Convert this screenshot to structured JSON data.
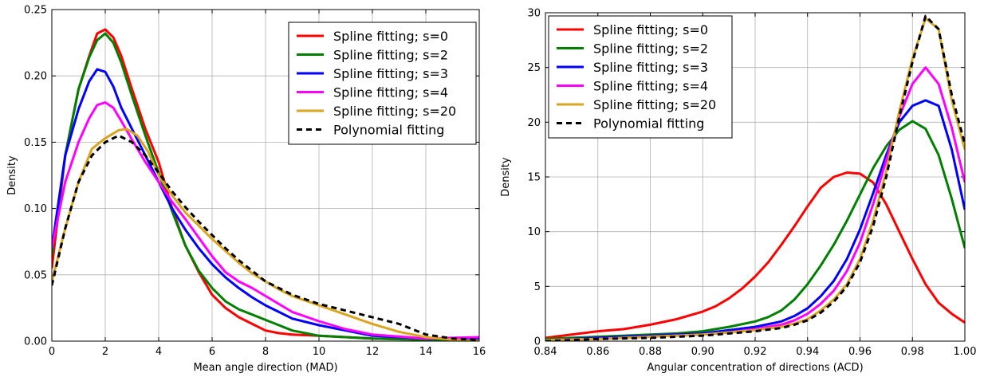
{
  "chart_data": [
    {
      "type": "line",
      "xlabel": "Mean angle direction (MAD)",
      "ylabel": "Density",
      "xlim": [
        0,
        16
      ],
      "ylim": [
        0,
        0.25
      ],
      "xticks": [
        "0",
        "2",
        "4",
        "6",
        "8",
        "10",
        "12",
        "14",
        "16"
      ],
      "yticks": [
        "0.00",
        "0.05",
        "0.10",
        "0.15",
        "0.20",
        "0.25"
      ],
      "grid": true,
      "legend_position": "top-right",
      "series": [
        {
          "name": "Spline fitting; s=0",
          "color": "#ff0000",
          "dash": "solid",
          "x": [
            0,
            0.5,
            1,
            1.4,
            1.7,
            2,
            2.3,
            2.6,
            3,
            3.5,
            4,
            4.5,
            5,
            5.5,
            6,
            6.5,
            7,
            7.5,
            8,
            8.5,
            9,
            10,
            11,
            12,
            14,
            16
          ],
          "y": [
            0.055,
            0.14,
            0.19,
            0.215,
            0.232,
            0.235,
            0.229,
            0.215,
            0.19,
            0.16,
            0.135,
            0.1,
            0.072,
            0.052,
            0.035,
            0.025,
            0.018,
            0.013,
            0.008,
            0.006,
            0.005,
            0.004,
            0.003,
            0.002,
            0.001,
            0.0
          ]
        },
        {
          "name": "Spline fitting; s=2",
          "color": "#008000",
          "dash": "solid",
          "x": [
            0,
            0.5,
            1,
            1.4,
            1.7,
            2,
            2.3,
            2.6,
            3,
            3.5,
            4,
            4.5,
            5,
            5.5,
            6,
            6.5,
            7,
            7.5,
            8,
            8.5,
            9,
            10,
            11,
            12,
            14,
            16
          ],
          "y": [
            0.065,
            0.14,
            0.19,
            0.214,
            0.227,
            0.232,
            0.225,
            0.21,
            0.185,
            0.155,
            0.127,
            0.098,
            0.072,
            0.053,
            0.04,
            0.03,
            0.024,
            0.02,
            0.016,
            0.012,
            0.008,
            0.004,
            0.003,
            0.002,
            0.001,
            0.0
          ]
        },
        {
          "name": "Spline fitting; s=3",
          "color": "#0000ff",
          "dash": "solid",
          "x": [
            0,
            0.5,
            1,
            1.4,
            1.7,
            2,
            2.3,
            2.6,
            3,
            3.5,
            4,
            4.5,
            5,
            5.5,
            6,
            6.5,
            7,
            7.5,
            8,
            8.5,
            9,
            10,
            11,
            12,
            14,
            16
          ],
          "y": [
            0.07,
            0.14,
            0.175,
            0.196,
            0.205,
            0.203,
            0.192,
            0.176,
            0.16,
            0.14,
            0.12,
            0.1,
            0.084,
            0.07,
            0.058,
            0.048,
            0.04,
            0.033,
            0.027,
            0.022,
            0.017,
            0.012,
            0.008,
            0.004,
            0.002,
            0.002
          ]
        },
        {
          "name": "Spline fitting; s=4",
          "color": "#ff00ff",
          "dash": "solid",
          "x": [
            0,
            0.5,
            1,
            1.4,
            1.7,
            2,
            2.3,
            2.6,
            3,
            3.5,
            4,
            4.5,
            5,
            5.5,
            6,
            6.5,
            7,
            7.5,
            8,
            8.5,
            9,
            10,
            11,
            12,
            14,
            16
          ],
          "y": [
            0.07,
            0.12,
            0.15,
            0.168,
            0.178,
            0.18,
            0.176,
            0.166,
            0.152,
            0.135,
            0.12,
            0.105,
            0.092,
            0.078,
            0.064,
            0.052,
            0.045,
            0.04,
            0.034,
            0.028,
            0.022,
            0.015,
            0.009,
            0.005,
            0.002,
            0.003
          ]
        },
        {
          "name": "Spline fitting; s=20",
          "color": "#daa520",
          "dash": "solid",
          "x": [
            0,
            0.5,
            1,
            1.5,
            2,
            2.5,
            2.8,
            3.2,
            3.6,
            4,
            4.5,
            5,
            5.5,
            6,
            6.5,
            7,
            7.5,
            8,
            8.5,
            9,
            10,
            11,
            12,
            13,
            14,
            15,
            16
          ],
          "y": [
            0.045,
            0.085,
            0.12,
            0.145,
            0.153,
            0.159,
            0.16,
            0.155,
            0.143,
            0.125,
            0.11,
            0.097,
            0.087,
            0.077,
            0.068,
            0.059,
            0.051,
            0.045,
            0.039,
            0.034,
            0.027,
            0.02,
            0.013,
            0.007,
            0.003,
            0.001,
            0.0
          ]
        },
        {
          "name": "Polynomial fitting",
          "color": "#000000",
          "dash": "dashed",
          "x": [
            0,
            0.5,
            1,
            1.5,
            2,
            2.5,
            3,
            3.5,
            4,
            4.5,
            5,
            5.5,
            6,
            6.5,
            7,
            7.5,
            8,
            8.5,
            9,
            10,
            11,
            12,
            13,
            14,
            15,
            16
          ],
          "y": [
            0.042,
            0.085,
            0.12,
            0.14,
            0.15,
            0.155,
            0.15,
            0.14,
            0.127,
            0.113,
            0.101,
            0.09,
            0.08,
            0.07,
            0.061,
            0.053,
            0.045,
            0.04,
            0.035,
            0.028,
            0.023,
            0.018,
            0.013,
            0.005,
            0.002,
            0.001
          ]
        }
      ]
    },
    {
      "type": "line",
      "xlabel": "Angular concentration of directions (ACD)",
      "ylabel": "Density",
      "xlim": [
        0.84,
        1.0
      ],
      "ylim": [
        0,
        30
      ],
      "xticks": [
        "0.84",
        "0.86",
        "0.88",
        "0.90",
        "0.92",
        "0.94",
        "0.96",
        "0.98",
        "1.00"
      ],
      "yticks": [
        "0",
        "5",
        "10",
        "15",
        "20",
        "25",
        "30"
      ],
      "grid": true,
      "legend_position": "top-left",
      "series": [
        {
          "name": "Spline fitting; s=0",
          "color": "#ff0000",
          "dash": "solid",
          "x": [
            0.84,
            0.85,
            0.86,
            0.87,
            0.88,
            0.89,
            0.9,
            0.905,
            0.91,
            0.915,
            0.92,
            0.925,
            0.93,
            0.935,
            0.94,
            0.945,
            0.95,
            0.955,
            0.96,
            0.965,
            0.97,
            0.975,
            0.98,
            0.985,
            0.99,
            0.995,
            1.0
          ],
          "y": [
            0.3,
            0.6,
            0.9,
            1.1,
            1.5,
            2.0,
            2.7,
            3.2,
            3.9,
            4.8,
            5.9,
            7.2,
            8.8,
            10.5,
            12.3,
            14.0,
            15.0,
            15.4,
            15.3,
            14.5,
            12.5,
            10.0,
            7.5,
            5.2,
            3.5,
            2.5,
            1.7
          ]
        },
        {
          "name": "Spline fitting; s=2",
          "color": "#008000",
          "dash": "solid",
          "x": [
            0.84,
            0.86,
            0.88,
            0.89,
            0.9,
            0.91,
            0.92,
            0.925,
            0.93,
            0.935,
            0.94,
            0.945,
            0.95,
            0.955,
            0.96,
            0.965,
            0.97,
            0.975,
            0.98,
            0.985,
            0.99,
            0.995,
            1.0
          ],
          "y": [
            0.2,
            0.4,
            0.6,
            0.7,
            0.9,
            1.3,
            1.8,
            2.2,
            2.8,
            3.8,
            5.2,
            6.9,
            8.8,
            11.0,
            13.4,
            15.8,
            17.8,
            19.3,
            20.1,
            19.4,
            17.0,
            13.0,
            8.5
          ]
        },
        {
          "name": "Spline fitting; s=3",
          "color": "#0000ff",
          "dash": "solid",
          "x": [
            0.84,
            0.86,
            0.88,
            0.9,
            0.91,
            0.92,
            0.93,
            0.935,
            0.94,
            0.945,
            0.95,
            0.955,
            0.96,
            0.965,
            0.97,
            0.975,
            0.98,
            0.985,
            0.99,
            0.995,
            1.0
          ],
          "y": [
            0.1,
            0.3,
            0.5,
            0.7,
            1.0,
            1.3,
            1.8,
            2.3,
            3.0,
            4.1,
            5.5,
            7.5,
            10.2,
            13.5,
            17.0,
            20.0,
            21.5,
            22.0,
            21.5,
            17.5,
            12.0
          ]
        },
        {
          "name": "Spline fitting; s=4",
          "color": "#ff00ff",
          "dash": "solid",
          "x": [
            0.84,
            0.86,
            0.88,
            0.9,
            0.91,
            0.92,
            0.93,
            0.935,
            0.94,
            0.945,
            0.95,
            0.955,
            0.96,
            0.965,
            0.97,
            0.975,
            0.98,
            0.985,
            0.99,
            0.995,
            1.0
          ],
          "y": [
            0.1,
            0.2,
            0.4,
            0.6,
            0.8,
            1.1,
            1.5,
            1.9,
            2.5,
            3.4,
            4.6,
            6.4,
            9.0,
            12.5,
            16.5,
            20.5,
            23.5,
            25.0,
            23.5,
            19.5,
            14.5
          ]
        },
        {
          "name": "Spline fitting; s=20",
          "color": "#daa520",
          "dash": "solid",
          "x": [
            0.84,
            0.86,
            0.88,
            0.9,
            0.91,
            0.92,
            0.93,
            0.935,
            0.94,
            0.945,
            0.95,
            0.955,
            0.96,
            0.965,
            0.97,
            0.975,
            0.98,
            0.985,
            0.99,
            0.995,
            1.0
          ],
          "y": [
            0.1,
            0.2,
            0.4,
            0.6,
            0.8,
            1.0,
            1.3,
            1.6,
            2.0,
            2.8,
            3.8,
            5.2,
            7.5,
            11.0,
            15.5,
            21.0,
            25.8,
            29.5,
            28.5,
            22.0,
            17.5
          ]
        },
        {
          "name": "Polynomial fitting",
          "color": "#000000",
          "dash": "dashed",
          "x": [
            0.84,
            0.86,
            0.88,
            0.9,
            0.91,
            0.92,
            0.93,
            0.935,
            0.94,
            0.945,
            0.95,
            0.955,
            0.96,
            0.965,
            0.97,
            0.975,
            0.98,
            0.985,
            0.99,
            0.995,
            1.0
          ],
          "y": [
            0.0,
            0.2,
            0.3,
            0.5,
            0.7,
            0.9,
            1.2,
            1.5,
            1.9,
            2.6,
            3.6,
            5.0,
            7.2,
            10.5,
            15.0,
            20.5,
            25.5,
            29.7,
            28.5,
            22.5,
            18.0
          ]
        }
      ]
    }
  ]
}
